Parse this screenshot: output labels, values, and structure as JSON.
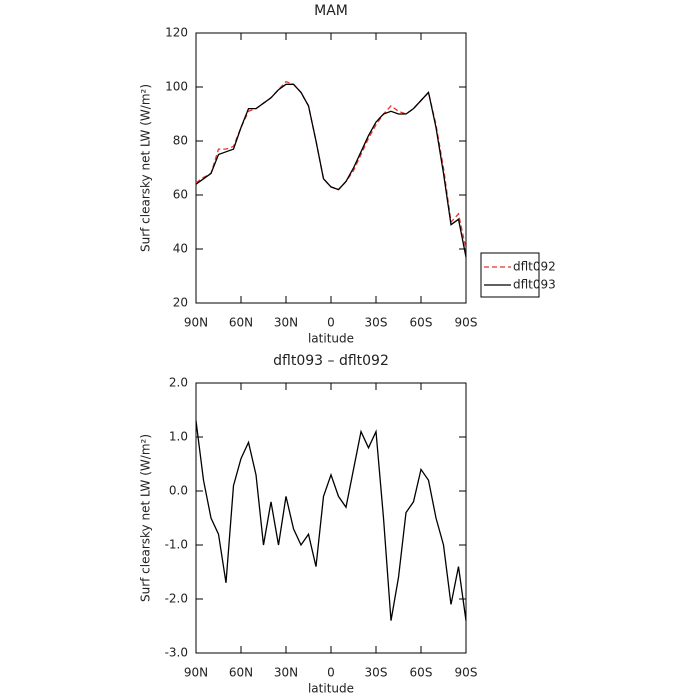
{
  "chart_data": [
    {
      "type": "line",
      "title": "MAM",
      "x_label": "latitude",
      "y_label": "Surf clearsky net LW (W/m²)",
      "x": [
        90,
        85,
        80,
        75,
        70,
        65,
        60,
        55,
        50,
        45,
        40,
        35,
        30,
        25,
        20,
        15,
        10,
        5,
        0,
        -5,
        -10,
        -15,
        -20,
        -25,
        -30,
        -35,
        -40,
        -45,
        -50,
        -55,
        -60,
        -65,
        -70,
        -75,
        -80,
        -85,
        -90
      ],
      "series": [
        {
          "name": "dflt092",
          "color": "#e8322a",
          "dash": true,
          "values": [
            64.5,
            66.5,
            68,
            77,
            77,
            78,
            85,
            91,
            92,
            94,
            96,
            99,
            102,
            101,
            98,
            93,
            80,
            66,
            63,
            62,
            65,
            69,
            75,
            81,
            86,
            90,
            93,
            91,
            90,
            92,
            95,
            98,
            86,
            70,
            50,
            53,
            40
          ]
        },
        {
          "name": "dflt093",
          "color": "#000000",
          "dash": false,
          "values": [
            64,
            66,
            68,
            75,
            76,
            77,
            85,
            92,
            92,
            94,
            96,
            99,
            101,
            101,
            98,
            93,
            80,
            66,
            63,
            62,
            65,
            70,
            76,
            82,
            87,
            90,
            91,
            90,
            90,
            92,
            95,
            98,
            85,
            68,
            49,
            51,
            37
          ]
        }
      ],
      "xlim": [
        90,
        -90
      ],
      "xticks": [
        {
          "value": 90,
          "label": "90N"
        },
        {
          "value": 60,
          "label": "60N"
        },
        {
          "value": 30,
          "label": "30N"
        },
        {
          "value": 0,
          "label": "0"
        },
        {
          "value": -30,
          "label": "30S"
        },
        {
          "value": -60,
          "label": "60S"
        },
        {
          "value": -90,
          "label": "90S"
        }
      ],
      "ylim": [
        20,
        120
      ],
      "yticks": [
        20,
        40,
        60,
        80,
        100,
        120
      ],
      "legend": "right"
    },
    {
      "type": "line",
      "title": "dflt093 – dflt092",
      "x_label": "latitude",
      "y_label": "Surf clearsky net LW (W/m²)",
      "x": [
        90,
        85,
        80,
        75,
        70,
        65,
        60,
        55,
        50,
        45,
        40,
        35,
        30,
        25,
        20,
        15,
        10,
        5,
        0,
        -5,
        -10,
        -15,
        -20,
        -25,
        -30,
        -35,
        -40,
        -45,
        -50,
        -55,
        -60,
        -65,
        -70,
        -75,
        -80,
        -85,
        -90
      ],
      "color": "#000000",
      "values": [
        1.3,
        0.2,
        -0.5,
        -0.8,
        -1.7,
        0.1,
        0.6,
        0.9,
        0.3,
        -1.0,
        -0.2,
        -1.0,
        -0.1,
        -0.7,
        -1.0,
        -0.8,
        -1.4,
        -0.1,
        0.3,
        -0.1,
        -0.3,
        0.4,
        1.1,
        0.8,
        1.1,
        -0.5,
        -2.4,
        -1.6,
        -0.4,
        -0.2,
        0.4,
        0.2,
        -0.5,
        -1.0,
        -2.1,
        -1.4,
        -2.4
      ],
      "xlim": [
        90,
        -90
      ],
      "xticks": [
        {
          "value": 90,
          "label": "90N"
        },
        {
          "value": 60,
          "label": "60N"
        },
        {
          "value": 30,
          "label": "30N"
        },
        {
          "value": 0,
          "label": "0"
        },
        {
          "value": -30,
          "label": "30S"
        },
        {
          "value": -60,
          "label": "60S"
        },
        {
          "value": -90,
          "label": "90S"
        }
      ],
      "ylim": [
        -3,
        2
      ],
      "yticks": [
        {
          "value": -3,
          "label": "-3.0"
        },
        {
          "value": -2,
          "label": "-2.0"
        },
        {
          "value": -1,
          "label": "-1.0"
        },
        {
          "value": 0,
          "label": "0.0"
        },
        {
          "value": 1,
          "label": "1.0"
        },
        {
          "value": 2,
          "label": "2.0"
        }
      ]
    }
  ]
}
